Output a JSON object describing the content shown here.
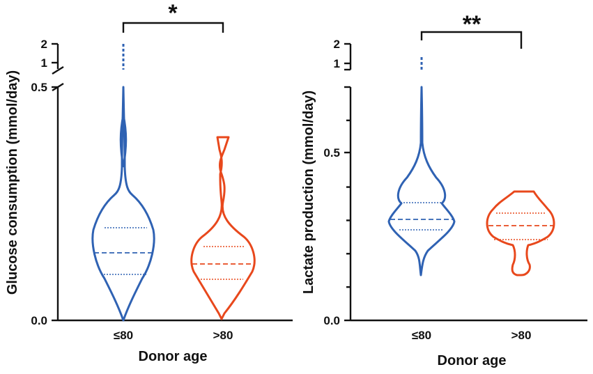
{
  "colors": {
    "le80": "#2f62b3",
    "gt80": "#e8481c",
    "axis": "#111111"
  },
  "chart_data": [
    {
      "type": "violin",
      "title": "",
      "xlabel": "Donor age",
      "ylabel": "Glucose consumption (mmol/day)",
      "categories": [
        "≤80",
        ">80"
      ],
      "ylim": [
        0,
        0.5
      ],
      "y_break": {
        "lower_max": 0.5,
        "upper_ticks": [
          1,
          2
        ]
      },
      "y_tick_labels": [
        "0.0",
        "0.5",
        "1",
        "2"
      ],
      "series": [
        {
          "name": "≤80",
          "color_key": "le80",
          "min": 0,
          "max": 2.0,
          "q1": 0.1,
          "median": 0.145,
          "q3": 0.197,
          "outliers": [
            1.0
          ]
        },
        {
          "name": ">80",
          "color_key": "gt80",
          "min": 0.01,
          "max": 0.39,
          "q1": 0.085,
          "median": 0.12,
          "q3": 0.155
        }
      ],
      "significance": {
        "label": "*",
        "between": [
          "≤80",
          ">80"
        ]
      }
    },
    {
      "type": "violin",
      "title": "",
      "xlabel": "Donor age",
      "ylabel": "Lactate production (mmol/day)",
      "categories": [
        "≤80",
        ">80"
      ],
      "ylim": [
        0,
        0.7
      ],
      "y_break": {
        "lower_max": 0.7,
        "upper_ticks": [
          1,
          2
        ]
      },
      "y_tick_labels": [
        "0.0",
        "0.5",
        "1",
        "2"
      ],
      "series": [
        {
          "name": "≤80",
          "color_key": "le80",
          "min": 0.14,
          "max": 1.2,
          "q1": 0.27,
          "median": 0.3,
          "q3": 0.35
        },
        {
          "name": ">80",
          "color_key": "gt80",
          "min": 0.14,
          "max": 0.385,
          "q1": 0.24,
          "median": 0.285,
          "q3": 0.32
        }
      ],
      "significance": {
        "label": "**",
        "between": [
          "≤80",
          ">80"
        ]
      }
    }
  ]
}
